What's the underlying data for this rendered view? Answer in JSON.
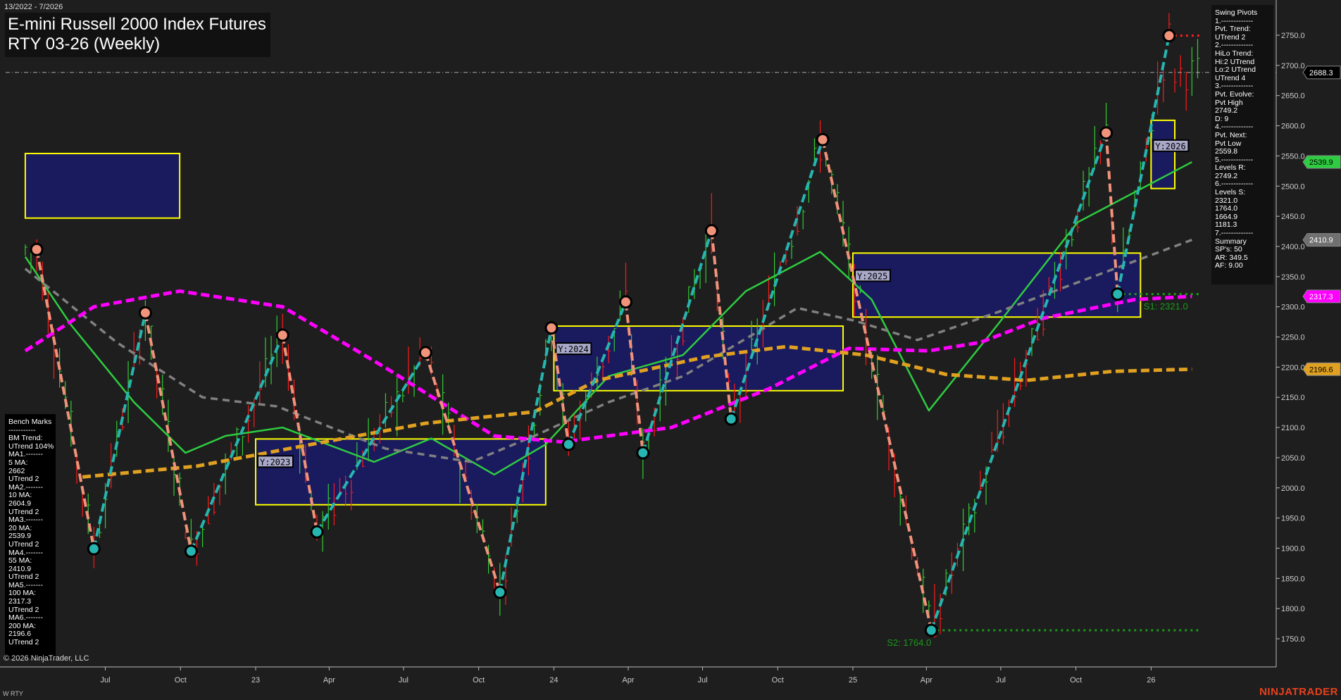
{
  "header": {
    "date_range": "13/2022 - 7/2026",
    "title_line1": "E-mini Russell 2000 Index Futures",
    "title_line2": "RTY 03-26 (Weekly)"
  },
  "swing_panel": {
    "lines": [
      "Swing Pivots",
      "1.-------------",
      "Pvt. Trend:",
      "UTrend 2",
      "2.-------------",
      "HiLo Trend:",
      "Hi:2 UTrend",
      "Lo:2 UTrend",
      "UTrend 4",
      "3.-------------",
      "Pvt. Evolve:",
      "Pvt High",
      "2749.2",
      "D: 9",
      "4.-------------",
      "Pvt. Next:",
      "Pvt Low",
      "2559.8",
      "5.-------------",
      "Levels R:",
      "2749.2",
      "6.-------------",
      "Levels S:",
      "2321.0",
      "1764.0",
      "1664.9",
      "1181.3",
      "7.-------------",
      "Summary",
      "SP's: 50",
      "AR: 349.5",
      "AF: 9.00"
    ]
  },
  "bench_panel": {
    "lines": [
      "Bench Marks",
      "-----------",
      "BM Trend:",
      "UTrend 104%",
      "MA1.-------",
      "5 MA:",
      "2662",
      "UTrend 2",
      "MA2.-------",
      "10 MA:",
      "2604.9",
      "UTrend 2",
      "MA3.-------",
      "20 MA:",
      "2539.9",
      "UTrend 2",
      "MA4.-------",
      "55 MA:",
      "2410.9",
      "UTrend 2",
      "MA5.-------",
      "100 MA:",
      "2317.3",
      "UTrend 2",
      "MA6.-------",
      "200 MA:",
      "2196.6",
      "UTrend 2"
    ]
  },
  "footer": {
    "copyright": "© 2026 NinjaTrader, LLC",
    "symbol": "W RTY",
    "logo": "NINJATRADER"
  },
  "colors": {
    "background": "#1e1e1e",
    "up_bar": "#33cc33",
    "down_bar": "#ff1a1a",
    "swing_up": "#26b5b0",
    "swing_down": "#f0937a",
    "ma20": "#2ecc40",
    "ma55": "#808080",
    "ma100": "#ff00ff",
    "ma200": "#e0a020",
    "zone_fill": "#1a1a5e",
    "zone_border": "#ffff00",
    "support": "#1a9a1a"
  },
  "chart_data": {
    "type": "line",
    "title": "E-mini Russell 2000 Index Futures RTY 03-26 (Weekly)",
    "y_axis": {
      "range": [
        1710,
        2800
      ],
      "ticks": [
        1750,
        1800,
        1850,
        1900,
        1950,
        2000,
        2050,
        2100,
        2150,
        2200,
        2250,
        2300,
        2350,
        2400,
        2450,
        2500,
        2550,
        2600,
        2650,
        2700,
        2750
      ],
      "position": "right"
    },
    "x_axis": {
      "range": [
        "2022-03-25",
        "2026-02-27"
      ],
      "ticks": [
        {
          "date": "2022-07-01",
          "label": "Jul"
        },
        {
          "date": "2022-10-01",
          "label": "Oct"
        },
        {
          "date": "2023-01-01",
          "label": "23"
        },
        {
          "date": "2023-04-01",
          "label": "Apr"
        },
        {
          "date": "2023-07-01",
          "label": "Jul"
        },
        {
          "date": "2023-10-01",
          "label": "Oct"
        },
        {
          "date": "2024-01-01",
          "label": "24"
        },
        {
          "date": "2024-04-01",
          "label": "Apr"
        },
        {
          "date": "2024-07-01",
          "label": "Jul"
        },
        {
          "date": "2024-10-01",
          "label": "Oct"
        },
        {
          "date": "2025-01-01",
          "label": "25"
        },
        {
          "date": "2025-04-01",
          "label": "Apr"
        },
        {
          "date": "2025-07-01",
          "label": "Jul"
        },
        {
          "date": "2025-10-01",
          "label": "Oct"
        },
        {
          "date": "2026-01-01",
          "label": "26"
        }
      ]
    },
    "grid": false,
    "swing_pivots": [
      {
        "date": "2022-04-08",
        "price": 2395,
        "type": "high"
      },
      {
        "date": "2022-06-17",
        "price": 1899,
        "type": "low"
      },
      {
        "date": "2022-08-19",
        "price": 2290,
        "type": "high"
      },
      {
        "date": "2022-10-14",
        "price": 1895,
        "type": "low"
      },
      {
        "date": "2023-02-03",
        "price": 2253,
        "type": "high"
      },
      {
        "date": "2023-03-17",
        "price": 1927,
        "type": "low"
      },
      {
        "date": "2023-07-28",
        "price": 2224,
        "type": "high"
      },
      {
        "date": "2023-10-27",
        "price": 1827,
        "type": "low"
      },
      {
        "date": "2023-12-29",
        "price": 2265,
        "type": "high"
      },
      {
        "date": "2024-01-19",
        "price": 2072,
        "type": "low"
      },
      {
        "date": "2024-03-29",
        "price": 2308,
        "type": "high"
      },
      {
        "date": "2024-04-19",
        "price": 2058,
        "type": "low"
      },
      {
        "date": "2024-07-12",
        "price": 2426,
        "type": "high"
      },
      {
        "date": "2024-08-05",
        "price": 2114,
        "type": "low"
      },
      {
        "date": "2024-11-25",
        "price": 2577,
        "type": "high"
      },
      {
        "date": "2025-04-07",
        "price": 1764,
        "type": "low"
      },
      {
        "date": "2025-11-07",
        "price": 2588,
        "type": "high"
      },
      {
        "date": "2025-11-21",
        "price": 2321,
        "type": "low"
      },
      {
        "date": "2026-01-23",
        "price": 2749.2,
        "type": "high"
      }
    ],
    "series": [
      {
        "name": "20 MA",
        "style": "solid",
        "color": "#2ecc40",
        "points": [
          [
            "2022-03-25",
            2383
          ],
          [
            "2022-05-20",
            2270
          ],
          [
            "2022-08-05",
            2142
          ],
          [
            "2022-10-07",
            2058
          ],
          [
            "2022-11-25",
            2086
          ],
          [
            "2023-02-03",
            2100
          ],
          [
            "2023-05-26",
            2043
          ],
          [
            "2023-08-04",
            2082
          ],
          [
            "2023-10-20",
            2022
          ],
          [
            "2023-12-22",
            2072
          ],
          [
            "2024-03-08",
            2185
          ],
          [
            "2024-06-07",
            2220
          ],
          [
            "2024-08-23",
            2326
          ],
          [
            "2024-11-22",
            2391
          ],
          [
            "2025-01-24",
            2312
          ],
          [
            "2025-04-04",
            2128
          ],
          [
            "2025-06-27",
            2270
          ],
          [
            "2025-10-03",
            2440
          ],
          [
            "2026-02-20",
            2539.9
          ]
        ]
      },
      {
        "name": "55 MA",
        "style": "dashed",
        "color": "#808080",
        "points": [
          [
            "2022-03-25",
            2363
          ],
          [
            "2022-07-15",
            2241
          ],
          [
            "2022-10-28",
            2150
          ],
          [
            "2023-01-27",
            2135
          ],
          [
            "2023-06-09",
            2065
          ],
          [
            "2023-09-22",
            2043
          ],
          [
            "2023-12-08",
            2086
          ],
          [
            "2024-03-08",
            2142
          ],
          [
            "2024-06-07",
            2185
          ],
          [
            "2024-10-25",
            2298
          ],
          [
            "2025-01-03",
            2277
          ],
          [
            "2025-03-21",
            2245
          ],
          [
            "2025-06-27",
            2291
          ],
          [
            "2026-02-20",
            2410.9
          ]
        ]
      },
      {
        "name": "100 MA",
        "style": "dashed",
        "color": "#ff00ff",
        "points": [
          [
            "2022-03-25",
            2227
          ],
          [
            "2022-06-17",
            2300
          ],
          [
            "2022-09-30",
            2326
          ],
          [
            "2023-02-03",
            2300
          ],
          [
            "2023-06-09",
            2199
          ],
          [
            "2023-10-20",
            2086
          ],
          [
            "2024-01-12",
            2076
          ],
          [
            "2024-05-24",
            2100
          ],
          [
            "2024-09-20",
            2164
          ],
          [
            "2024-12-27",
            2231
          ],
          [
            "2025-04-04",
            2227
          ],
          [
            "2025-06-06",
            2241
          ],
          [
            "2025-08-22",
            2281
          ],
          [
            "2025-12-12",
            2312
          ],
          [
            "2026-02-20",
            2317.3
          ]
        ]
      },
      {
        "name": "200 MA",
        "style": "dashed",
        "color": "#e0a020",
        "points": [
          [
            "2022-06-03",
            2018
          ],
          [
            "2022-10-21",
            2036
          ],
          [
            "2023-03-10",
            2072
          ],
          [
            "2023-07-28",
            2107
          ],
          [
            "2023-12-08",
            2126
          ],
          [
            "2024-02-23",
            2178
          ],
          [
            "2024-07-05",
            2217
          ],
          [
            "2024-10-11",
            2234
          ],
          [
            "2025-01-17",
            2220
          ],
          [
            "2025-04-25",
            2188
          ],
          [
            "2025-08-01",
            2178
          ],
          [
            "2025-11-14",
            2193
          ],
          [
            "2026-02-20",
            2196.6
          ]
        ]
      }
    ],
    "yearly_zones": [
      {
        "label": "",
        "start": "2022-03-25",
        "end": "2022-09-30",
        "top": 2554,
        "bottom": 2447
      },
      {
        "label": "Y:2023",
        "start": "2023-01-01",
        "end": "2023-12-22",
        "top": 2081,
        "bottom": 1972
      },
      {
        "label": "Y:2024",
        "start": "2024-01-01",
        "end": "2024-12-20",
        "top": 2268,
        "bottom": 2161
      },
      {
        "label": "Y:2025",
        "start": "2025-01-01",
        "end": "2025-12-19",
        "top": 2389,
        "bottom": 2283
      },
      {
        "label": "Y:2026",
        "start": "2026-01-01",
        "end": "2026-01-30",
        "top": 2609,
        "bottom": 2496
      }
    ],
    "levels": [
      {
        "label": "S1: 2321.0",
        "price": 2321.0,
        "start": "2025-11-21",
        "end": "2026-02-20",
        "color": "#1a9a1a"
      },
      {
        "label": "S2: 1764.0",
        "price": 1764.0,
        "start": "2025-04-07",
        "end": "2026-02-20",
        "color": "#1a9a1a"
      },
      {
        "label": "",
        "price": 2749.2,
        "start": "2026-01-23",
        "end": "2026-02-20",
        "color": "#ff2020"
      }
    ],
    "last_price": 2688.3,
    "price_markers": [
      {
        "value": "2688.3",
        "bg": "#000000",
        "fg": "#ffffff"
      },
      {
        "value": "2539.9",
        "bg": "#2ecc40",
        "fg": "#000000"
      },
      {
        "value": "2410.9",
        "bg": "#707070",
        "fg": "#ffffff"
      },
      {
        "value": "2317.3",
        "bg": "#ff00ff",
        "fg": "#ffffff"
      },
      {
        "value": "2196.6",
        "bg": "#e0a020",
        "fg": "#000000"
      }
    ]
  }
}
